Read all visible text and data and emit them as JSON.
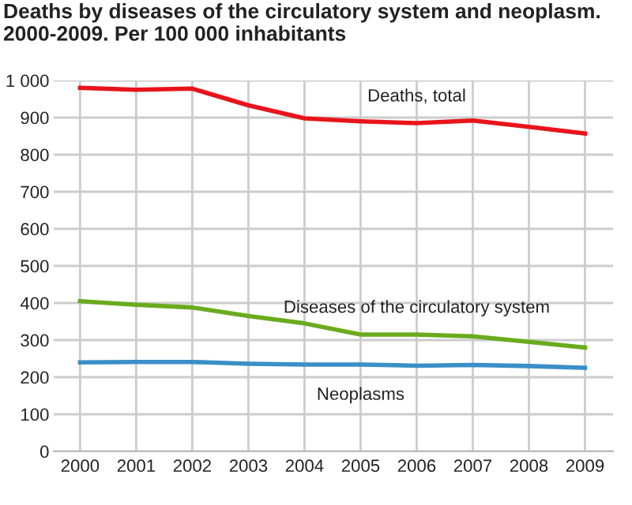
{
  "chart_data": {
    "type": "line",
    "title": "Deaths by diseases of the circulatory system and neoplasm.\n2000-2009. Per 100 000 inhabitants",
    "categories": [
      "2000",
      "2001",
      "2002",
      "2003",
      "2004",
      "2005",
      "2006",
      "2007",
      "2008",
      "2009"
    ],
    "series": [
      {
        "name": "Deaths, total",
        "color": "#e8141b",
        "values": [
          980,
          975,
          978,
          933,
          898,
          890,
          885,
          892,
          875,
          857
        ]
      },
      {
        "name": "Diseases of the circulatory system",
        "color": "#6aab1e",
        "values": [
          405,
          395,
          388,
          365,
          345,
          315,
          315,
          310,
          295,
          280
        ]
      },
      {
        "name": "Neoplasms",
        "color": "#3a8fc8",
        "values": [
          240,
          241,
          241,
          236,
          234,
          234,
          231,
          233,
          230,
          225
        ]
      }
    ],
    "ylim": [
      0,
      1000
    ],
    "yticks": [
      0,
      100,
      200,
      300,
      400,
      500,
      600,
      700,
      800,
      900,
      {
        "value": 1000,
        "label": "1 000"
      }
    ],
    "grid": true,
    "legend": false,
    "marker": "none",
    "line_style": "solid"
  }
}
